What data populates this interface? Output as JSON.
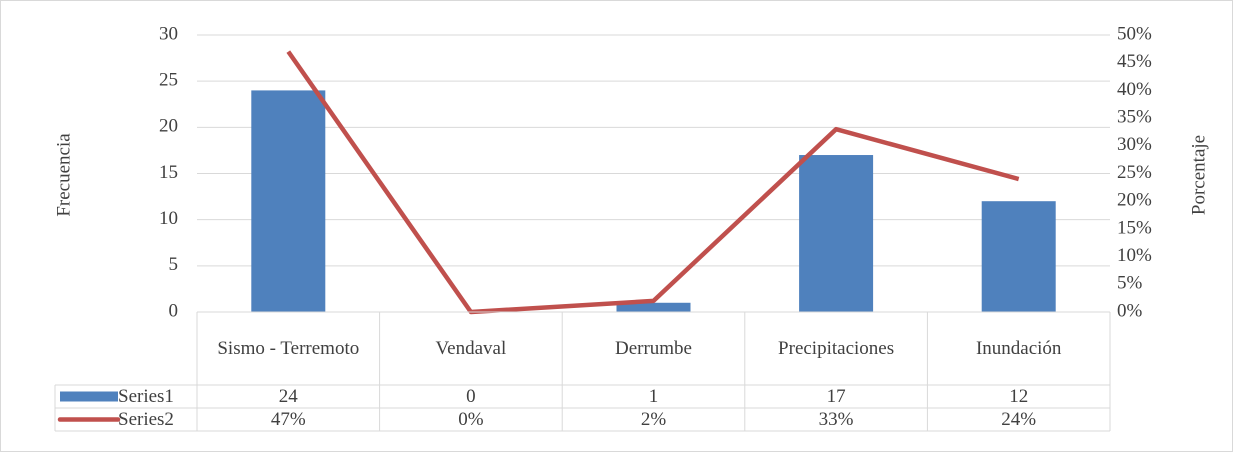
{
  "chart_data": {
    "type": "bar-line",
    "y_label": "Frecuencia",
    "y2_label": "Porcentaje",
    "categories": [
      "Sismo - Terremoto",
      "Vendaval",
      "Derrumbe",
      "Precipitaciones",
      "Inundación"
    ],
    "series": [
      {
        "name": "Series1",
        "type": "bar",
        "color": "#4f81bd",
        "values": [
          24,
          0,
          1,
          17,
          12
        ]
      },
      {
        "name": "Series2",
        "type": "line",
        "axis": "y2",
        "color": "#c0504d",
        "values": [
          47,
          0,
          2,
          33,
          24
        ],
        "value_labels": [
          "47%",
          "0%",
          "2%",
          "33%",
          "24%"
        ]
      }
    ],
    "ylim": [
      0,
      30
    ],
    "yticks": [
      0,
      5,
      10,
      15,
      20,
      25,
      30
    ],
    "y2lim": [
      0,
      50
    ],
    "y2ticks": [
      {
        "value": 0,
        "label": "0%"
      },
      {
        "value": 5,
        "label": "5%"
      },
      {
        "value": 10,
        "label": "10%"
      },
      {
        "value": 15,
        "label": "15%"
      },
      {
        "value": 20,
        "label": "20%"
      },
      {
        "value": 25,
        "label": "25%"
      },
      {
        "value": 30,
        "label": "30%"
      },
      {
        "value": 35,
        "label": "35%"
      },
      {
        "value": 40,
        "label": "40%"
      },
      {
        "value": 45,
        "label": "45%"
      },
      {
        "value": 50,
        "label": "50%"
      }
    ],
    "grid": true,
    "data_table": true
  }
}
